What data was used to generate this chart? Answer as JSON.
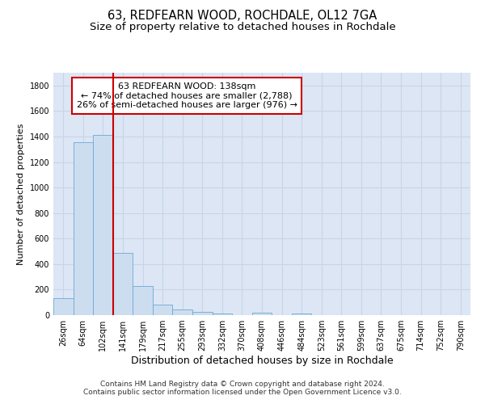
{
  "title": "63, REDFEARN WOOD, ROCHDALE, OL12 7GA",
  "subtitle": "Size of property relative to detached houses in Rochdale",
  "xlabel": "Distribution of detached houses by size in Rochdale",
  "ylabel": "Number of detached properties",
  "bar_labels": [
    "26sqm",
    "64sqm",
    "102sqm",
    "141sqm",
    "179sqm",
    "217sqm",
    "255sqm",
    "293sqm",
    "332sqm",
    "370sqm",
    "408sqm",
    "446sqm",
    "484sqm",
    "523sqm",
    "561sqm",
    "599sqm",
    "637sqm",
    "675sqm",
    "714sqm",
    "752sqm",
    "790sqm"
  ],
  "bar_heights": [
    135,
    1355,
    1410,
    490,
    230,
    80,
    47,
    25,
    15,
    0,
    20,
    0,
    15,
    0,
    0,
    0,
    0,
    0,
    0,
    0,
    0
  ],
  "bar_color": "#cdddf0",
  "bar_edge_color": "#6aaad4",
  "vline_x": 2.5,
  "vline_color": "#cc0000",
  "annotation_text": "63 REDFEARN WOOD: 138sqm\n← 74% of detached houses are smaller (2,788)\n26% of semi-detached houses are larger (976) →",
  "annotation_box_color": "#ffffff",
  "annotation_box_edge": "#cc0000",
  "ylim": [
    0,
    1900
  ],
  "yticks": [
    0,
    200,
    400,
    600,
    800,
    1000,
    1200,
    1400,
    1600,
    1800
  ],
  "grid_color": "#c8d4e8",
  "bg_color": "#dce6f5",
  "footer": "Contains HM Land Registry data © Crown copyright and database right 2024.\nContains public sector information licensed under the Open Government Licence v3.0.",
  "title_fontsize": 10.5,
  "subtitle_fontsize": 9.5,
  "xlabel_fontsize": 9,
  "ylabel_fontsize": 8,
  "tick_fontsize": 7,
  "annotation_fontsize": 8,
  "footer_fontsize": 6.5
}
